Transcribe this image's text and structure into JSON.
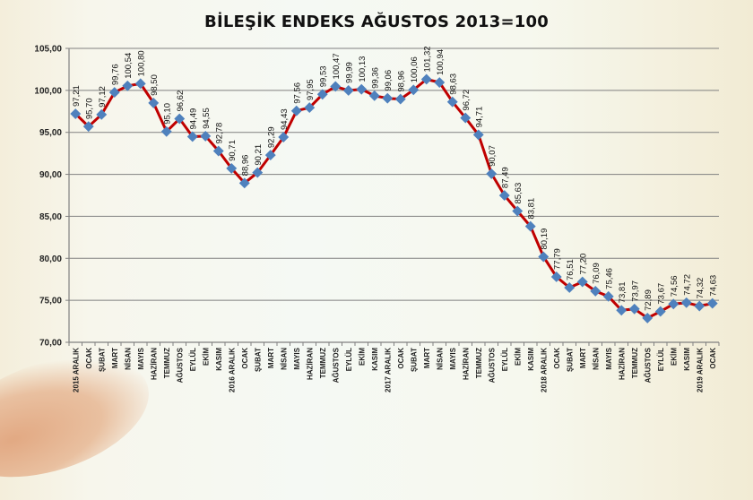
{
  "chart_data": {
    "type": "line",
    "title": "BİLEŞİK ENDEKS AĞUSTOS 2013=100",
    "xlabel": "",
    "ylabel": "",
    "ylim": [
      70,
      105
    ],
    "yticks": [
      "70,00",
      "75,00",
      "80,00",
      "85,00",
      "90,00",
      "95,00",
      "100,00",
      "105,00"
    ],
    "grid": true,
    "legend": null,
    "colors": {
      "line": "#c00000",
      "marker": "#4f81bd",
      "grid": "#808080"
    },
    "categories": [
      "2015 ARALIK",
      "OCAK",
      "ŞUBAT",
      "MART",
      "NİSAN",
      "MAYIS",
      "HAZİRAN",
      "TEMMUZ",
      "AĞUSTOS",
      "EYLÜL",
      "EKİM",
      "KASIM",
      "2016 ARALIK",
      "OCAK",
      "ŞUBAT",
      "MART",
      "NİSAN",
      "MAYIS",
      "HAZİRAN",
      "TEMMUZ",
      "AĞUSTOS",
      "EYLÜL",
      "EKİM",
      "KASIM",
      "2017 ARALIK",
      "OCAK",
      "ŞUBAT",
      "MART",
      "NİSAN",
      "MAYIS",
      "HAZİRAN",
      "TEMMUZ",
      "AĞUSTOS",
      "EYLÜL",
      "EKİM",
      "KASIM",
      "2018 ARALIK",
      "OCAK",
      "ŞUBAT",
      "MART",
      "NİSAN",
      "MAYIS",
      "HAZİRAN",
      "TEMMUZ",
      "AĞUSTOS",
      "EYLÜL",
      "EKİM",
      "KASIM",
      "2019 ARALIK",
      "OCAK"
    ],
    "series": [
      {
        "name": "Bileşik Endeks",
        "values": [
          97.21,
          95.7,
          97.12,
          99.76,
          100.54,
          100.8,
          98.5,
          95.1,
          96.62,
          94.49,
          94.55,
          92.78,
          90.71,
          88.96,
          90.21,
          92.29,
          94.43,
          97.56,
          97.95,
          99.53,
          100.47,
          99.99,
          100.13,
          99.36,
          99.06,
          98.96,
          100.06,
          101.32,
          100.94,
          98.63,
          96.72,
          94.71,
          90.07,
          87.49,
          85.63,
          83.81,
          80.19,
          77.79,
          76.51,
          77.2,
          76.09,
          75.46,
          73.81,
          73.97,
          72.89,
          73.67,
          74.56,
          74.72,
          74.32,
          74.63
        ],
        "labels": [
          "97,21",
          "95,70",
          "97,12",
          "99,76",
          "100,54",
          "100,80",
          "98,50",
          "95,10",
          "96,62",
          "94,49",
          "94,55",
          "92,78",
          "90,71",
          "88,96",
          "90,21",
          "92,29",
          "94,43",
          "97,56",
          "97,95",
          "99,53",
          "100,47",
          "99,99",
          "100,13",
          "99,36",
          "99,06",
          "98,96",
          "100,06",
          "101,32",
          "100,94",
          "98,63",
          "96,72",
          "94,71",
          "90,07",
          "87,49",
          "85,63",
          "83,81",
          "80,19",
          "77,79",
          "76,51",
          "77,20",
          "76,09",
          "75,46",
          "73,81",
          "73,97",
          "72,89",
          "73,67",
          "74,56",
          "74,72",
          "74,32",
          "74,63"
        ]
      }
    ]
  }
}
